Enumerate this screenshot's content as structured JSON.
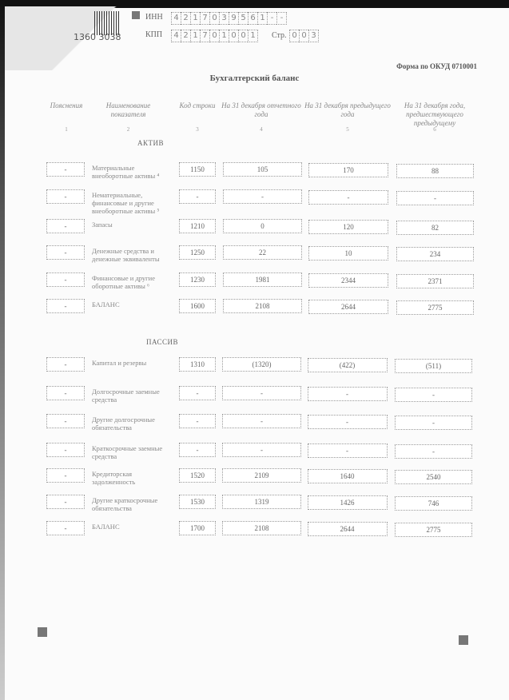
{
  "header": {
    "barcode_number": "1360 3038",
    "inn_label": "ИНН",
    "inn_digits": [
      "4",
      "2",
      "1",
      "7",
      "0",
      "3",
      "9",
      "5",
      "6",
      "1",
      "-",
      "-"
    ],
    "kpp_label": "КПП",
    "kpp_digits": [
      "4",
      "2",
      "1",
      "7",
      "0",
      "1",
      "0",
      "0",
      "1"
    ],
    "page_label": "Стр.",
    "page_digits": [
      "0",
      "0",
      "3"
    ],
    "form_code": "Форма по ОКУД 0710001",
    "title": "Бухгалтерский баланс"
  },
  "columns": [
    {
      "label": "Пояснения",
      "num": "1"
    },
    {
      "label": "Наименование показателя",
      "num": "2"
    },
    {
      "label": "Код строки",
      "num": "3"
    },
    {
      "label": "На 31 декабря отчетного года",
      "num": "4"
    },
    {
      "label": "На 31 декабря предыдущего года",
      "num": "5"
    },
    {
      "label": "На 31 декабря года, предшествующего предыдущему",
      "num": "6"
    }
  ],
  "assets": {
    "title": "АКТИВ",
    "rows": [
      {
        "note": "-",
        "name": "Материальные внеоборотные активы ⁴",
        "code": "1150",
        "v1": "105",
        "v2": "170",
        "v3": "88"
      },
      {
        "note": "-",
        "name": "Нематериальные, финансовые и другие внеоборотные активы ⁵",
        "code": "-",
        "v1": "-",
        "v2": "-",
        "v3": "-"
      },
      {
        "note": "-",
        "name": "Запасы",
        "code": "1210",
        "v1": "0",
        "v2": "120",
        "v3": "82"
      },
      {
        "note": "-",
        "name": "Денежные средства и денежные эквиваленты",
        "code": "1250",
        "v1": "22",
        "v2": "10",
        "v3": "234"
      },
      {
        "note": "-",
        "name": "Финансовые и другие оборотные активы ⁶",
        "code": "1230",
        "v1": "1981",
        "v2": "2344",
        "v3": "2371"
      },
      {
        "note": "-",
        "name": "БАЛАНС",
        "code": "1600",
        "v1": "2108",
        "v2": "2644",
        "v3": "2775"
      }
    ]
  },
  "liabilities": {
    "title": "ПАССИВ",
    "rows": [
      {
        "note": "-",
        "name": "Капитал и резервы",
        "code": "1310",
        "v1": "(1320)",
        "v2": "(422)",
        "v3": "(511)"
      },
      {
        "note": "-",
        "name": "Долгосрочные заемные средства",
        "code": "-",
        "v1": "-",
        "v2": "-",
        "v3": "-"
      },
      {
        "note": "-",
        "name": "Другие долгосрочные обязательства",
        "code": "-",
        "v1": "-",
        "v2": "-",
        "v3": "-"
      },
      {
        "note": "-",
        "name": "Краткосрочные заемные средства",
        "code": "-",
        "v1": "-",
        "v2": "-",
        "v3": "-"
      },
      {
        "note": "-",
        "name": "Кредиторская задолженность",
        "code": "1520",
        "v1": "2109",
        "v2": "1640",
        "v3": "2540"
      },
      {
        "note": "-",
        "name": "Другие краткосрочные обязательства",
        "code": "1530",
        "v1": "1319",
        "v2": "1426",
        "v3": "746"
      },
      {
        "note": "-",
        "name": "БАЛАНС",
        "code": "1700",
        "v1": "2108",
        "v2": "2644",
        "v3": "2775"
      }
    ]
  }
}
